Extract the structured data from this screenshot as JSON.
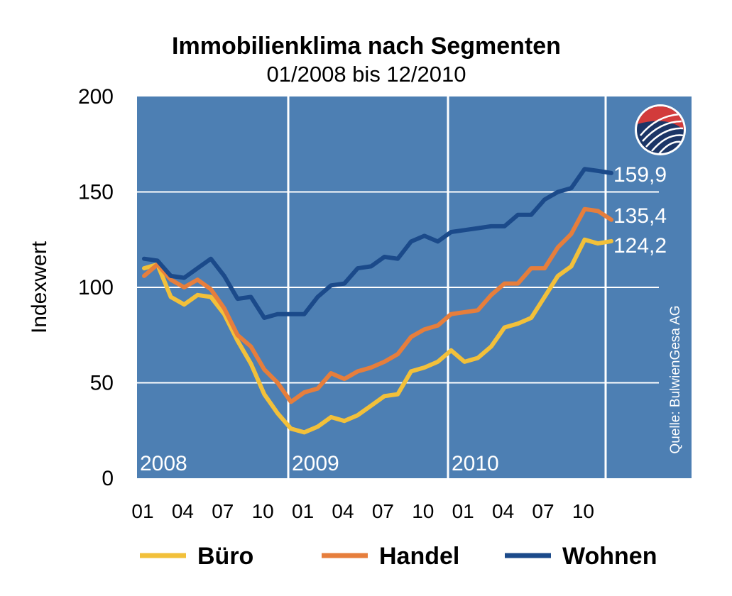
{
  "chart_data": {
    "type": "line",
    "title": "Immobilienklima nach Segmenten",
    "subtitle": "01/2008 bis 12/2010",
    "ylabel": "Indexwert",
    "ylim": [
      0,
      200
    ],
    "yticks": [
      "0",
      "50",
      "100",
      "150",
      "200"
    ],
    "xtick_labels": [
      "01",
      "04",
      "07",
      "10",
      "01",
      "04",
      "07",
      "10",
      "01",
      "04",
      "07",
      "10"
    ],
    "years": [
      "2008",
      "2009",
      "2010"
    ],
    "source": "Quelle: BulwienGesa AG",
    "background_color": "#4d7fb3",
    "series": [
      {
        "name": "Büro",
        "color": "#f2c03a",
        "end_label": "124,2",
        "values": [
          110,
          112,
          95,
          91,
          96,
          95,
          86,
          72,
          60,
          44,
          34,
          26,
          24,
          27,
          32,
          30,
          33,
          38,
          43,
          44,
          56,
          58,
          61,
          67,
          61,
          63,
          69,
          79,
          81,
          84,
          95,
          106,
          111,
          125,
          123,
          124.2
        ]
      },
      {
        "name": "Handel",
        "color": "#e67e3c",
        "end_label": "135,4",
        "values": [
          106,
          112,
          104,
          100,
          104,
          99,
          89,
          75,
          69,
          57,
          50,
          40,
          45,
          47,
          55,
          52,
          56,
          58,
          61,
          65,
          74,
          78,
          80,
          86,
          87,
          88,
          96,
          102,
          102,
          110,
          110,
          121,
          128,
          141,
          140,
          135.4
        ]
      },
      {
        "name": "Wohnen",
        "color": "#1b4a8a",
        "end_label": "159,9",
        "values": [
          115,
          114,
          106,
          105,
          110,
          115,
          106,
          94,
          95,
          84,
          86,
          86,
          86,
          95,
          101,
          102,
          110,
          111,
          116,
          115,
          124,
          127,
          124,
          129,
          130,
          131,
          132,
          132,
          138,
          138,
          146,
          150,
          152,
          162,
          161,
          159.9
        ]
      }
    ]
  }
}
